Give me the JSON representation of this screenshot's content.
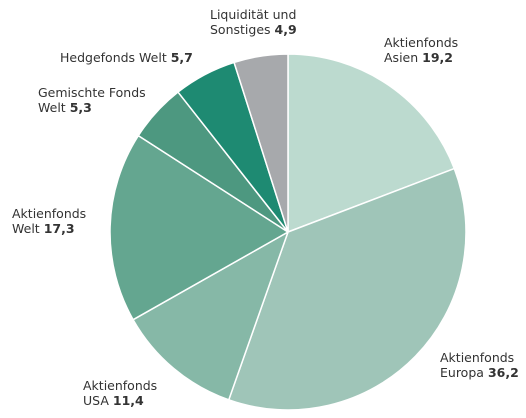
{
  "chart_data": {
    "type": "pie",
    "categories": [
      [
        "Aktienfonds",
        "Asien"
      ],
      [
        "Aktienfonds",
        "Europa"
      ],
      [
        "Aktienfonds",
        "USA"
      ],
      [
        "Aktienfonds",
        "Welt"
      ],
      [
        "Gemischte Fonds",
        "Welt"
      ],
      [
        "Hedgefonds Welt"
      ],
      [
        "Liquidität und",
        "Sonstiges"
      ]
    ],
    "values": [
      19.2,
      36.2,
      11.4,
      17.3,
      5.3,
      5.7,
      4.9
    ],
    "value_labels": [
      "19,2",
      "36,2",
      "11,4",
      "17,3",
      "5,3",
      "5,7",
      "4,9"
    ],
    "colors": [
      "#bcdacf",
      "#9fc5b8",
      "#86b8a7",
      "#64a690",
      "#4d9880",
      "#1e8a72",
      "#a7a9ac"
    ]
  }
}
